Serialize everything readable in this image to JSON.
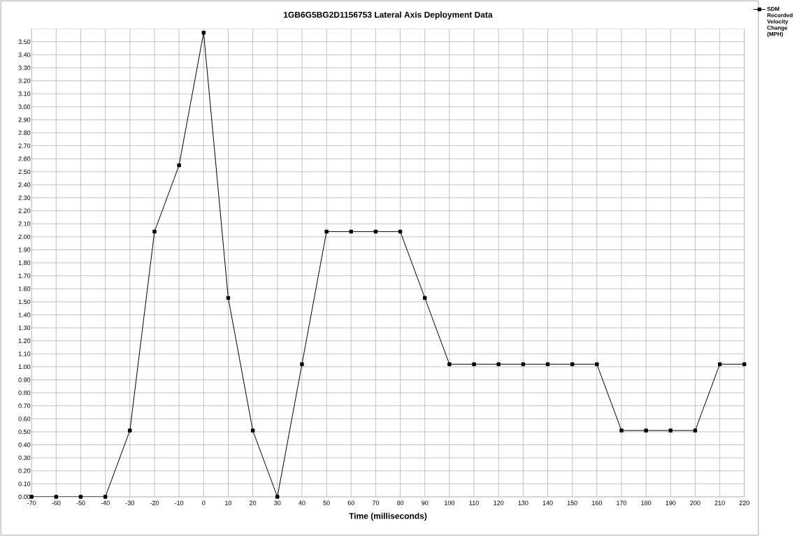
{
  "chart_data": {
    "type": "line",
    "title": "1GB6G5BG2D1156753  Lateral Axis Deployment Data",
    "xlabel": "Time (milliseconds)",
    "x": [
      -70,
      -60,
      -50,
      -40,
      -30,
      -20,
      -10,
      0,
      10,
      20,
      30,
      40,
      50,
      60,
      70,
      80,
      90,
      100,
      110,
      120,
      130,
      140,
      150,
      160,
      170,
      180,
      190,
      200,
      210,
      220
    ],
    "series": [
      {
        "name": "SDM Recorded Velocity Change (MPH)",
        "color": "#000000",
        "values": [
          0,
          0,
          0,
          0,
          0.51,
          2.04,
          2.55,
          3.57,
          1.53,
          0.51,
          0,
          1.02,
          2.04,
          2.04,
          2.04,
          2.04,
          1.53,
          1.02,
          1.02,
          1.02,
          1.02,
          1.02,
          1.02,
          1.02,
          0.51,
          0.51,
          0.51,
          0.51,
          1.02,
          1.02
        ]
      }
    ],
    "xlim": [
      -70,
      220
    ],
    "xticks": [
      -70,
      -60,
      -50,
      -40,
      -30,
      -20,
      -10,
      0,
      10,
      20,
      30,
      40,
      50,
      60,
      70,
      80,
      90,
      100,
      110,
      120,
      130,
      140,
      150,
      160,
      170,
      180,
      190,
      200,
      210,
      220
    ],
    "ylim": [
      0,
      3.6
    ],
    "yticks": [
      {
        "value": 0,
        "label": "0.00"
      },
      {
        "value": 0.1,
        "label": "0.10"
      },
      {
        "value": 0.2,
        "label": "0.20"
      },
      {
        "value": 0.3,
        "label": "0.30"
      },
      {
        "value": 0.4,
        "label": "0.40"
      },
      {
        "value": 0.5,
        "label": "0.50"
      },
      {
        "value": 0.6,
        "label": "0.60"
      },
      {
        "value": 0.7,
        "label": "0.70"
      },
      {
        "value": 0.8,
        "label": "0.80"
      },
      {
        "value": 0.9,
        "label": "0.90"
      },
      {
        "value": 1.0,
        "label": "1.00"
      },
      {
        "value": 1.1,
        "label": "1.10"
      },
      {
        "value": 1.2,
        "label": "1.20"
      },
      {
        "value": 1.3,
        "label": "1.30"
      },
      {
        "value": 1.4,
        "label": "1.40"
      },
      {
        "value": 1.5,
        "label": "1.50"
      },
      {
        "value": 1.6,
        "label": "1.60"
      },
      {
        "value": 1.7,
        "label": "1.70"
      },
      {
        "value": 1.8,
        "label": "1.80"
      },
      {
        "value": 1.9,
        "label": "1.90"
      },
      {
        "value": 2.0,
        "label": "2.00"
      },
      {
        "value": 2.1,
        "label": "2.10"
      },
      {
        "value": 2.2,
        "label": "2.20"
      },
      {
        "value": 2.3,
        "label": "2.30"
      },
      {
        "value": 2.4,
        "label": "2.40"
      },
      {
        "value": 2.5,
        "label": "2.50"
      },
      {
        "value": 2.6,
        "label": "2.60"
      },
      {
        "value": 2.7,
        "label": "2.70"
      },
      {
        "value": 2.8,
        "label": "2.80"
      },
      {
        "value": 2.9,
        "label": "2.90"
      },
      {
        "value": 3.0,
        "label": "3.00"
      },
      {
        "value": 3.1,
        "label": "3.10"
      },
      {
        "value": 3.2,
        "label": "3.20"
      },
      {
        "value": 3.3,
        "label": "3.30"
      },
      {
        "value": 3.4,
        "label": "3.40"
      },
      {
        "value": 3.5,
        "label": "3.50"
      }
    ],
    "grid": true,
    "legend": "top right",
    "marker": "square",
    "line_style": "solid"
  }
}
